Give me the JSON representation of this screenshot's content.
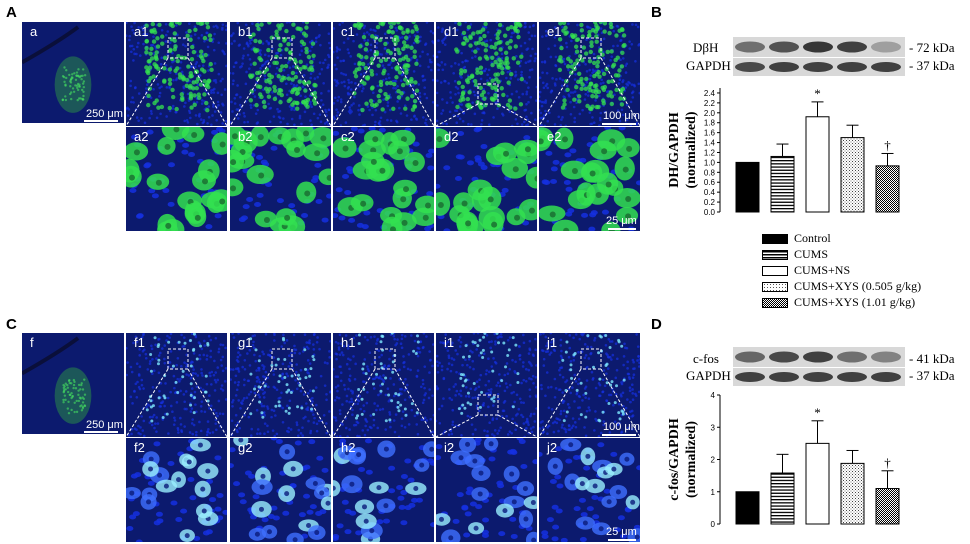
{
  "panel_letters": [
    "A",
    "B",
    "C",
    "D"
  ],
  "row_A": {
    "overview_label": "a",
    "overview_scale": "250 μm",
    "top_labels": [
      "a1",
      "b1",
      "c1",
      "d1",
      "e1"
    ],
    "bottom_labels": [
      "a2",
      "b2",
      "c2",
      "d2",
      "e2"
    ],
    "top_scale": "100 μm",
    "bottom_scale": "25 μm"
  },
  "row_C": {
    "overview_label": "f",
    "overview_scale": "250 μm",
    "top_labels": [
      "f1",
      "g1",
      "h1",
      "i1",
      "j1"
    ],
    "bottom_labels": [
      "f2",
      "g2",
      "h2",
      "i2",
      "j2"
    ],
    "top_scale": "100 μm",
    "bottom_scale": "25 μm"
  },
  "blot_B": {
    "rows": [
      {
        "label": "DβH",
        "kda": "- 72 kDa"
      },
      {
        "label": "GAPDH",
        "kda": "- 37 kDa"
      }
    ]
  },
  "blot_D": {
    "rows": [
      {
        "label": "c-fos",
        "kda": "- 41 kDa"
      },
      {
        "label": "GAPDH",
        "kda": "- 37 kDa"
      }
    ]
  },
  "legend": {
    "items": [
      {
        "label": "Control",
        "fill": "solid"
      },
      {
        "label": "CUMS",
        "fill": "hstripe"
      },
      {
        "label": "CUMS+NS",
        "fill": "open"
      },
      {
        "label": "CUMS+XYS (0.505 g/kg)",
        "fill": "dots"
      },
      {
        "label": "CUMS+XYS (1.01 g/kg)",
        "fill": "check"
      }
    ]
  },
  "chart_data": [
    {
      "type": "bar",
      "panel": "B",
      "ylabel": "DH/GAPDH (normalized)",
      "ylabel_lines": [
        "DH/GAPDH",
        "(normalized)"
      ],
      "ylim": [
        0,
        2.5
      ],
      "yticks": [
        "0.0",
        "0.2",
        "0.4",
        "0.6",
        "0.8",
        "1.0",
        "1.2",
        "1.4",
        "1.6",
        "1.8",
        "2.0",
        "2.2",
        "2.4"
      ],
      "categories": [
        "Control",
        "CUMS",
        "CUMS+NS",
        "CUMS+XYS (0.505 g/kg)",
        "CUMS+XYS (1.01 g/kg)"
      ],
      "values": [
        1.0,
        1.12,
        1.92,
        1.5,
        0.93
      ],
      "errors": [
        0,
        0.25,
        0.3,
        0.25,
        0.25
      ],
      "annotations": [
        "",
        "",
        "*",
        "",
        "†"
      ]
    },
    {
      "type": "bar",
      "panel": "D",
      "ylabel": "c-fos/GAPDH (normalized)",
      "ylabel_lines": [
        "c-fos/GAPDH",
        "(normalized)"
      ],
      "ylim": [
        0,
        4
      ],
      "yticks": [
        "0",
        "1",
        "2",
        "3",
        "4"
      ],
      "categories": [
        "Control",
        "CUMS",
        "CUMS+NS",
        "CUMS+XYS (0.505 g/kg)",
        "CUMS+XYS (1.01 g/kg)"
      ],
      "values": [
        1.0,
        1.58,
        2.5,
        1.88,
        1.1
      ],
      "errors": [
        0,
        0.58,
        0.7,
        0.4,
        0.55
      ],
      "annotations": [
        "",
        "",
        "*",
        "",
        "†"
      ]
    }
  ],
  "colors": {
    "tissue_bg": "#0c1a6e",
    "green_signal": "#33e050",
    "blue_nucleus": "#1530e0",
    "cyan_signal": "#7ee8ff"
  }
}
